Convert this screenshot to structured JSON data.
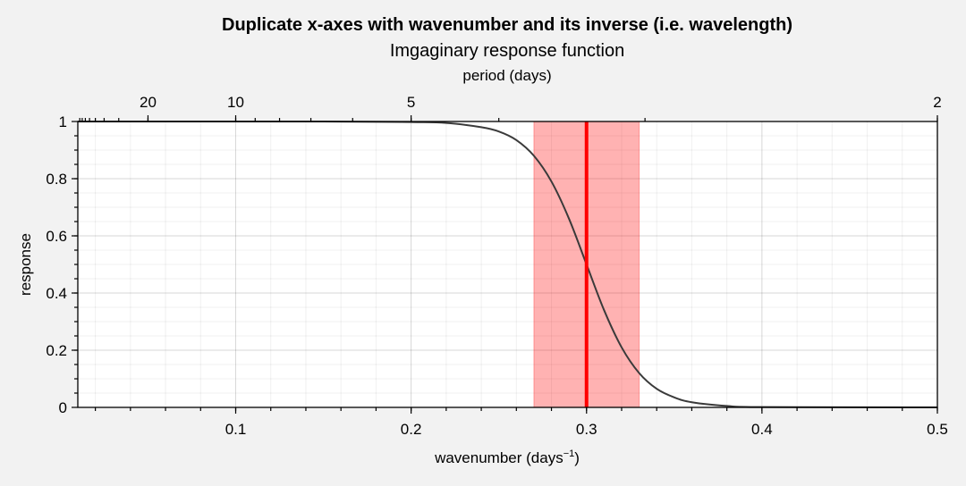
{
  "chart_data": {
    "type": "line",
    "suptitle": "Duplicate x-axes with wavenumber and its inverse (i.e. wavelength)",
    "title": "Imgaginary response function",
    "xlabel": "wavenumber (days",
    "xlabel_sup": "−1",
    "xlabel_end": ")",
    "ylabel": "response",
    "top_xlabel": "period (days)",
    "xlim": [
      0.01,
      0.5
    ],
    "ylim": [
      0,
      1
    ],
    "xticks": [
      0.1,
      0.2,
      0.3,
      0.4,
      0.5
    ],
    "xtick_labels": [
      "0.1",
      "0.2",
      "0.3",
      "0.4",
      "0.5"
    ],
    "yticks": [
      0,
      0.2,
      0.4,
      0.6,
      0.8,
      1
    ],
    "ytick_labels": [
      "0",
      "0.2",
      "0.4",
      "0.6",
      "0.8",
      "1"
    ],
    "top_ticks_period": [
      20,
      10,
      5,
      2
    ],
    "top_tick_labels": [
      "20",
      "10",
      "5",
      "2"
    ],
    "grid": true,
    "series": [
      {
        "x": [
          0.01,
          0.15,
          0.2,
          0.22,
          0.24,
          0.25,
          0.26,
          0.27,
          0.28,
          0.29,
          0.3,
          0.31,
          0.32,
          0.33,
          0.34,
          0.35,
          0.36,
          0.38,
          0.4,
          0.5
        ],
        "y": [
          1.0,
          1.0,
          0.998,
          0.995,
          0.98,
          0.965,
          0.935,
          0.88,
          0.79,
          0.66,
          0.5,
          0.34,
          0.21,
          0.12,
          0.065,
          0.035,
          0.018,
          0.005,
          0.001,
          0.0
        ],
        "color": "#3a3a3a"
      }
    ],
    "span": {
      "x": [
        0.27,
        0.33
      ],
      "color": "#ff0000"
    },
    "vline": {
      "x": 0.3,
      "color": "#ff0000"
    }
  }
}
